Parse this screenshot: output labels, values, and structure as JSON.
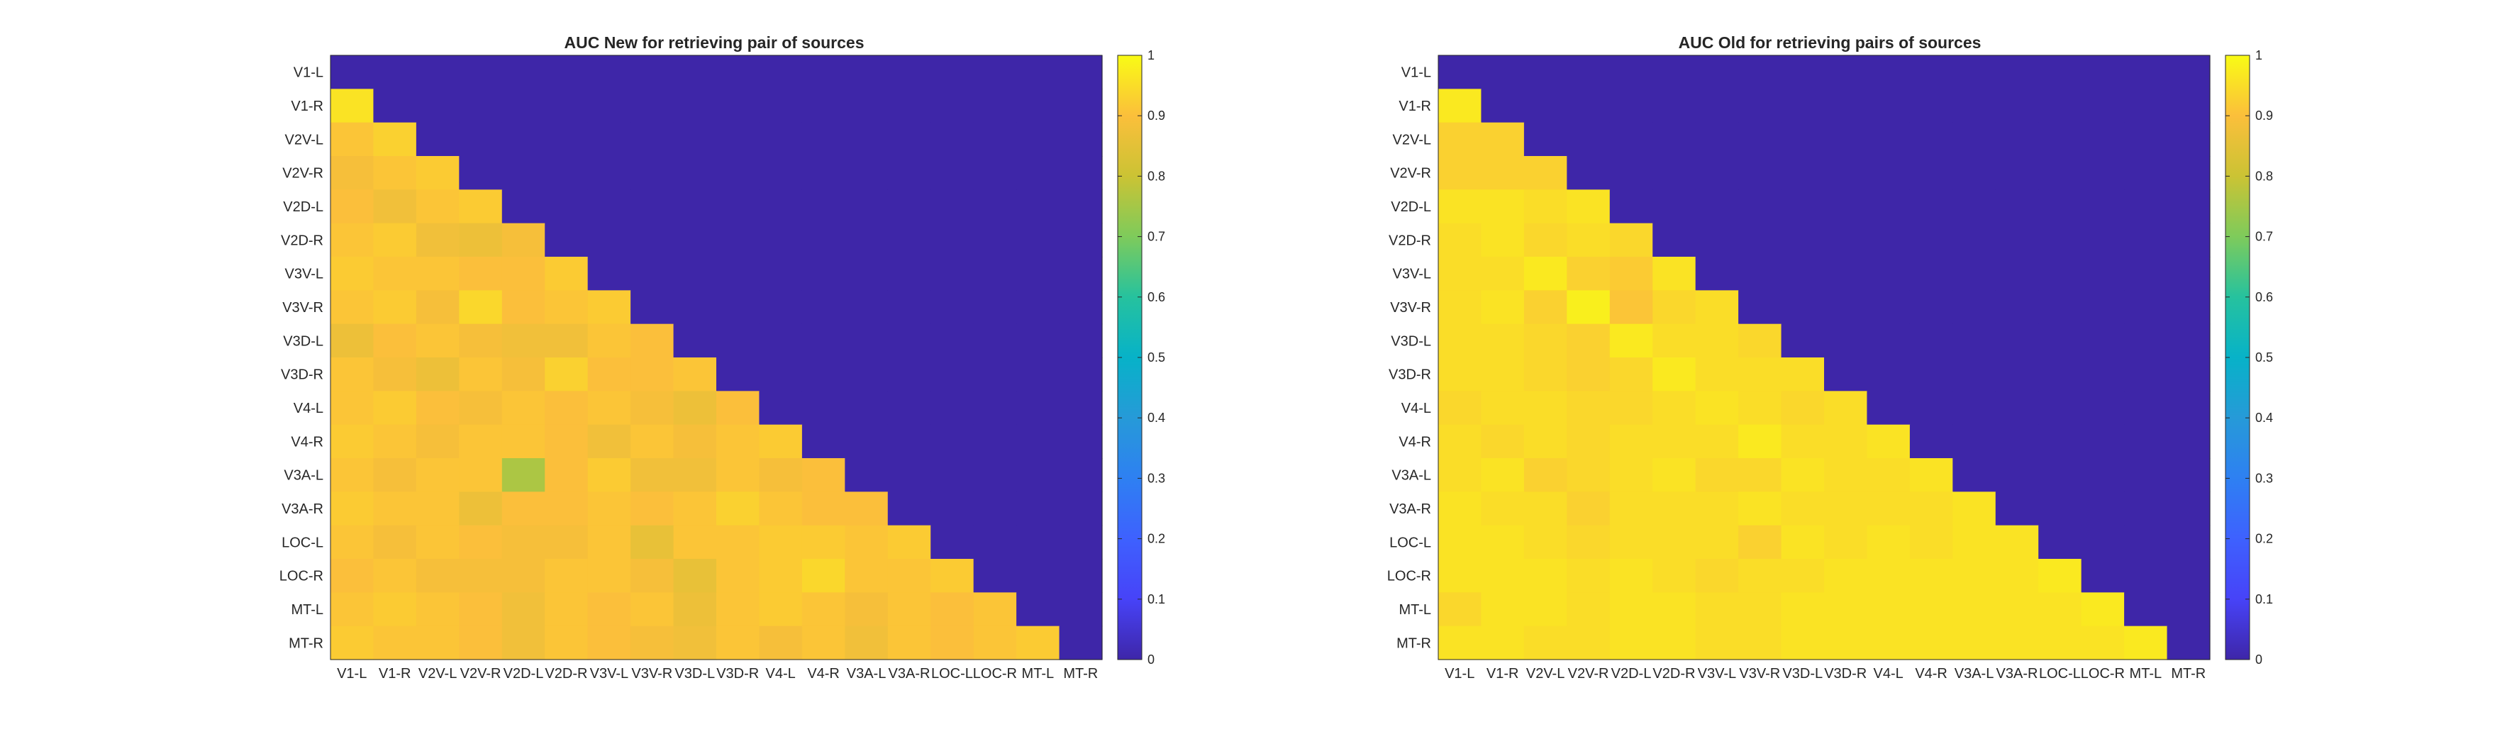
{
  "colors": {
    "background": "#ffffff",
    "axis": "#262626",
    "colormap": "parula"
  },
  "chart_data": [
    {
      "type": "heatmap",
      "title": "AUC New for retrieving pair of sources",
      "x_categories": [
        "V1-L",
        "V1-R",
        "V2V-L",
        "V2V-R",
        "V2D-L",
        "V2D-R",
        "V3V-L",
        "V3V-R",
        "V3D-L",
        "V3D-R",
        "V4-L",
        "V4-R",
        "V3A-L",
        "V3A-R",
        "LOC-L",
        "LOC-R",
        "MT-L",
        "MT-R"
      ],
      "y_categories": [
        "V1-L",
        "V1-R",
        "V2V-L",
        "V2V-R",
        "V2D-L",
        "V2D-R",
        "V3V-L",
        "V3V-R",
        "V3D-L",
        "V3D-R",
        "V4-L",
        "V4-R",
        "V3A-L",
        "V3A-R",
        "LOC-L",
        "LOC-R",
        "MT-L",
        "MT-R"
      ],
      "values": [
        [
          0,
          0,
          0,
          0,
          0,
          0,
          0,
          0,
          0,
          0,
          0,
          0,
          0,
          0,
          0,
          0,
          0,
          0
        ],
        [
          0.96,
          0,
          0,
          0,
          0,
          0,
          0,
          0,
          0,
          0,
          0,
          0,
          0,
          0,
          0,
          0,
          0,
          0
        ],
        [
          0.91,
          0.93,
          0,
          0,
          0,
          0,
          0,
          0,
          0,
          0,
          0,
          0,
          0,
          0,
          0,
          0,
          0,
          0
        ],
        [
          0.89,
          0.91,
          0.92,
          0,
          0,
          0,
          0,
          0,
          0,
          0,
          0,
          0,
          0,
          0,
          0,
          0,
          0,
          0
        ],
        [
          0.9,
          0.88,
          0.91,
          0.92,
          0,
          0,
          0,
          0,
          0,
          0,
          0,
          0,
          0,
          0,
          0,
          0,
          0,
          0
        ],
        [
          0.91,
          0.92,
          0.88,
          0.87,
          0.89,
          0,
          0,
          0,
          0,
          0,
          0,
          0,
          0,
          0,
          0,
          0,
          0,
          0
        ],
        [
          0.92,
          0.91,
          0.91,
          0.9,
          0.9,
          0.92,
          0,
          0,
          0,
          0,
          0,
          0,
          0,
          0,
          0,
          0,
          0,
          0
        ],
        [
          0.91,
          0.92,
          0.89,
          0.94,
          0.9,
          0.91,
          0.92,
          0,
          0,
          0,
          0,
          0,
          0,
          0,
          0,
          0,
          0,
          0
        ],
        [
          0.87,
          0.9,
          0.91,
          0.89,
          0.88,
          0.88,
          0.91,
          0.9,
          0,
          0,
          0,
          0,
          0,
          0,
          0,
          0,
          0,
          0
        ],
        [
          0.91,
          0.89,
          0.87,
          0.91,
          0.89,
          0.93,
          0.9,
          0.9,
          0.91,
          0,
          0,
          0,
          0,
          0,
          0,
          0,
          0,
          0
        ],
        [
          0.91,
          0.92,
          0.9,
          0.89,
          0.91,
          0.9,
          0.91,
          0.89,
          0.87,
          0.9,
          0,
          0,
          0,
          0,
          0,
          0,
          0,
          0
        ],
        [
          0.92,
          0.91,
          0.89,
          0.91,
          0.91,
          0.9,
          0.88,
          0.91,
          0.89,
          0.91,
          0.92,
          0,
          0,
          0,
          0,
          0,
          0,
          0
        ],
        [
          0.91,
          0.89,
          0.91,
          0.91,
          0.76,
          0.9,
          0.92,
          0.88,
          0.88,
          0.91,
          0.89,
          0.9,
          0,
          0,
          0,
          0,
          0,
          0
        ],
        [
          0.92,
          0.91,
          0.91,
          0.87,
          0.9,
          0.9,
          0.91,
          0.9,
          0.91,
          0.93,
          0.91,
          0.9,
          0.9,
          0,
          0,
          0,
          0,
          0
        ],
        [
          0.91,
          0.89,
          0.91,
          0.9,
          0.89,
          0.89,
          0.91,
          0.86,
          0.91,
          0.91,
          0.92,
          0.92,
          0.91,
          0.92,
          0,
          0,
          0,
          0
        ],
        [
          0.9,
          0.91,
          0.89,
          0.89,
          0.89,
          0.91,
          0.91,
          0.89,
          0.86,
          0.91,
          0.92,
          0.94,
          0.91,
          0.91,
          0.92,
          0,
          0,
          0
        ],
        [
          0.91,
          0.92,
          0.91,
          0.9,
          0.88,
          0.91,
          0.9,
          0.91,
          0.87,
          0.91,
          0.92,
          0.91,
          0.89,
          0.91,
          0.9,
          0.91,
          0,
          0
        ],
        [
          0.92,
          0.91,
          0.91,
          0.9,
          0.88,
          0.91,
          0.9,
          0.89,
          0.88,
          0.91,
          0.89,
          0.91,
          0.88,
          0.91,
          0.9,
          0.91,
          0.92,
          0
        ]
      ],
      "colorbar": {
        "min": 0,
        "max": 1,
        "ticks": [
          "0",
          "0.1",
          "0.2",
          "0.3",
          "0.4",
          "0.5",
          "0.6",
          "0.7",
          "0.8",
          "0.9",
          "1"
        ]
      }
    },
    {
      "type": "heatmap",
      "title": "AUC Old for retrieving pairs of sources",
      "x_categories": [
        "V1-L",
        "V1-R",
        "V2V-L",
        "V2V-R",
        "V2D-L",
        "V2D-R",
        "V3V-L",
        "V3V-R",
        "V3D-L",
        "V3D-R",
        "V4-L",
        "V4-R",
        "V3A-L",
        "V3A-R",
        "LOC-L",
        "LOC-R",
        "MT-L",
        "MT-R"
      ],
      "y_categories": [
        "V1-L",
        "V1-R",
        "V2V-L",
        "V2V-R",
        "V2D-L",
        "V2D-R",
        "V3V-L",
        "V3V-R",
        "V3D-L",
        "V3D-R",
        "V4-L",
        "V4-R",
        "V3A-L",
        "V3A-R",
        "LOC-L",
        "LOC-R",
        "MT-L",
        "MT-R"
      ],
      "values": [
        [
          0,
          0,
          0,
          0,
          0,
          0,
          0,
          0,
          0,
          0,
          0,
          0,
          0,
          0,
          0,
          0,
          0,
          0
        ],
        [
          0.97,
          0,
          0,
          0,
          0,
          0,
          0,
          0,
          0,
          0,
          0,
          0,
          0,
          0,
          0,
          0,
          0,
          0
        ],
        [
          0.93,
          0.93,
          0,
          0,
          0,
          0,
          0,
          0,
          0,
          0,
          0,
          0,
          0,
          0,
          0,
          0,
          0,
          0
        ],
        [
          0.93,
          0.93,
          0.93,
          0,
          0,
          0,
          0,
          0,
          0,
          0,
          0,
          0,
          0,
          0,
          0,
          0,
          0,
          0
        ],
        [
          0.96,
          0.96,
          0.95,
          0.96,
          0,
          0,
          0,
          0,
          0,
          0,
          0,
          0,
          0,
          0,
          0,
          0,
          0,
          0
        ],
        [
          0.95,
          0.96,
          0.94,
          0.95,
          0.94,
          0,
          0,
          0,
          0,
          0,
          0,
          0,
          0,
          0,
          0,
          0,
          0,
          0
        ],
        [
          0.95,
          0.95,
          0.97,
          0.93,
          0.92,
          0.96,
          0,
          0,
          0,
          0,
          0,
          0,
          0,
          0,
          0,
          0,
          0,
          0
        ],
        [
          0.95,
          0.96,
          0.93,
          0.98,
          0.91,
          0.94,
          0.95,
          0,
          0,
          0,
          0,
          0,
          0,
          0,
          0,
          0,
          0,
          0
        ],
        [
          0.95,
          0.95,
          0.94,
          0.93,
          0.97,
          0.95,
          0.95,
          0.94,
          0,
          0,
          0,
          0,
          0,
          0,
          0,
          0,
          0,
          0
        ],
        [
          0.95,
          0.95,
          0.94,
          0.93,
          0.94,
          0.97,
          0.95,
          0.95,
          0.95,
          0,
          0,
          0,
          0,
          0,
          0,
          0,
          0,
          0
        ],
        [
          0.94,
          0.95,
          0.95,
          0.94,
          0.94,
          0.95,
          0.96,
          0.95,
          0.94,
          0.95,
          0,
          0,
          0,
          0,
          0,
          0,
          0,
          0
        ],
        [
          0.95,
          0.94,
          0.95,
          0.94,
          0.95,
          0.95,
          0.95,
          0.97,
          0.95,
          0.95,
          0.96,
          0,
          0,
          0,
          0,
          0,
          0,
          0
        ],
        [
          0.95,
          0.96,
          0.93,
          0.94,
          0.95,
          0.96,
          0.94,
          0.94,
          0.96,
          0.95,
          0.95,
          0.96,
          0,
          0,
          0,
          0,
          0,
          0
        ],
        [
          0.96,
          0.95,
          0.95,
          0.93,
          0.95,
          0.95,
          0.95,
          0.96,
          0.95,
          0.95,
          0.95,
          0.95,
          0.96,
          0,
          0,
          0,
          0,
          0
        ],
        [
          0.96,
          0.96,
          0.95,
          0.94,
          0.95,
          0.95,
          0.95,
          0.93,
          0.96,
          0.95,
          0.96,
          0.95,
          0.96,
          0.96,
          0,
          0,
          0,
          0
        ],
        [
          0.96,
          0.96,
          0.96,
          0.95,
          0.96,
          0.95,
          0.94,
          0.95,
          0.95,
          0.96,
          0.96,
          0.96,
          0.96,
          0.96,
          0.97,
          0,
          0,
          0
        ],
        [
          0.94,
          0.96,
          0.96,
          0.95,
          0.96,
          0.96,
          0.95,
          0.95,
          0.96,
          0.96,
          0.96,
          0.96,
          0.96,
          0.96,
          0.96,
          0.97,
          0,
          0
        ],
        [
          0.96,
          0.96,
          0.95,
          0.95,
          0.96,
          0.96,
          0.95,
          0.95,
          0.96,
          0.96,
          0.96,
          0.96,
          0.96,
          0.96,
          0.96,
          0.96,
          0.97,
          0
        ]
      ],
      "colorbar": {
        "min": 0,
        "max": 1,
        "ticks": [
          "0",
          "0.1",
          "0.2",
          "0.3",
          "0.4",
          "0.5",
          "0.6",
          "0.7",
          "0.8",
          "0.9",
          "1"
        ]
      }
    }
  ]
}
